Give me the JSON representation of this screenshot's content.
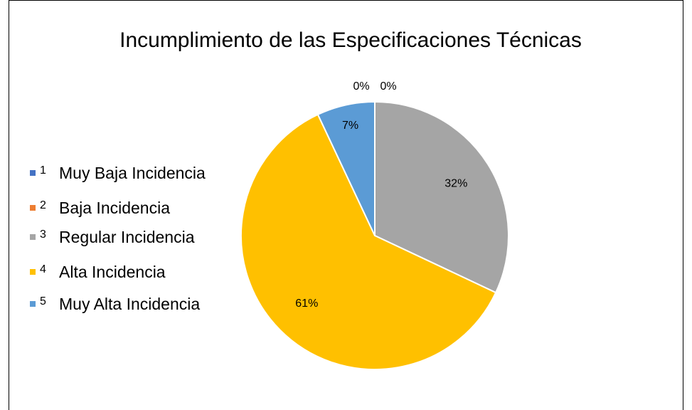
{
  "chart_data": {
    "type": "pie",
    "title": "Incumplimiento de las Especificaciones Técnicas",
    "categories": [
      "1",
      "2",
      "3",
      "4",
      "5"
    ],
    "category_names": [
      "Muy Baja Incidencia",
      "Baja Incidencia",
      "Regular Incidencia",
      "Alta Incidencia",
      "Muy Alta Incidencia"
    ],
    "values": [
      0,
      0,
      32,
      61,
      7
    ],
    "value_labels": [
      "0%",
      "0%",
      "32%",
      "61%",
      "7%"
    ],
    "colors": [
      "#4472c4",
      "#ed7d31",
      "#a5a5a5",
      "#ffc000",
      "#5b9bd5"
    ],
    "legend": "left"
  }
}
